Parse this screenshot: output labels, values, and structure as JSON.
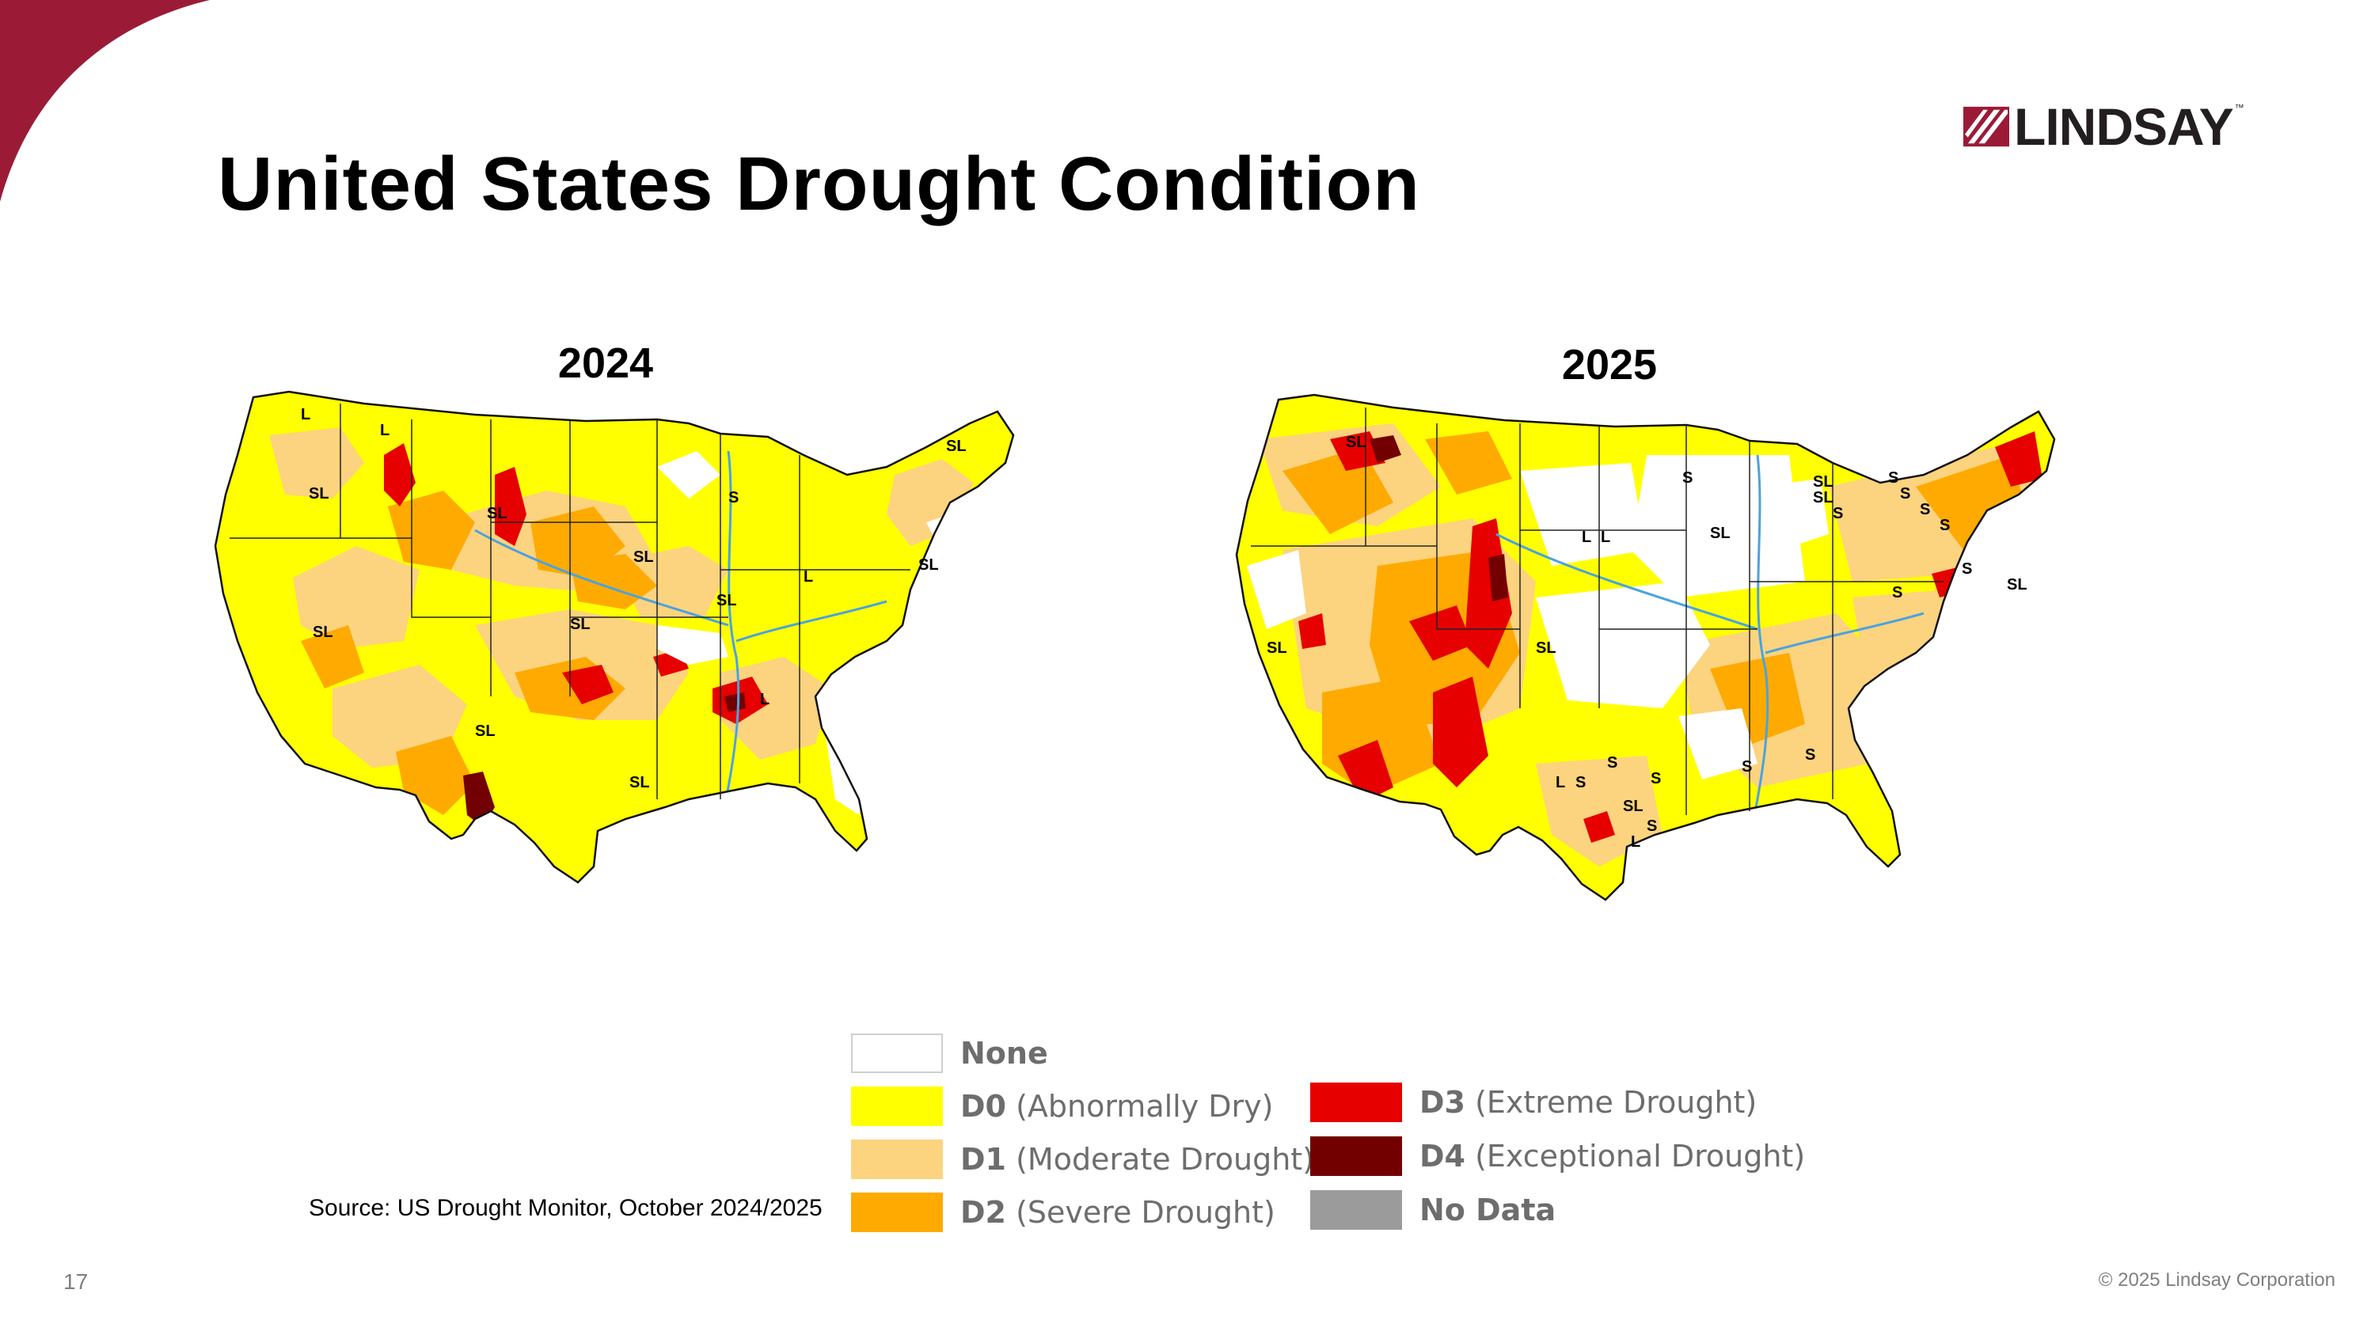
{
  "header": {
    "title": "United States Drought Condition",
    "logo_text": "LINDSAY",
    "logo_tm": "™"
  },
  "maps": [
    {
      "year": "2024",
      "labels": [
        "L",
        "L",
        "SL",
        "SL",
        "SL",
        "SL",
        "SL",
        "S",
        "L",
        "SL",
        "SL",
        "SL",
        "SL",
        "L",
        "SL"
      ]
    },
    {
      "year": "2025",
      "labels": [
        "SL",
        "S",
        "L",
        "L",
        "SL",
        "SL",
        "SL",
        "S",
        "S",
        "S",
        "S",
        "S",
        "SL",
        "S",
        "S",
        "L",
        "S",
        "SL",
        "S",
        "L",
        "S",
        "S",
        "SL",
        "S",
        "SL",
        "S"
      ]
    }
  ],
  "legend": {
    "items": [
      {
        "code": "None",
        "desc": "",
        "color": "#ffffff"
      },
      {
        "code": "D0",
        "desc": "(Abnormally Dry)",
        "color": "#ffff00"
      },
      {
        "code": "D1",
        "desc": "(Moderate Drought)",
        "color": "#fcd37f"
      },
      {
        "code": "D2",
        "desc": "(Severe Drought)",
        "color": "#ffaa00"
      },
      {
        "code": "D3",
        "desc": "(Extreme Drought)",
        "color": "#e60000"
      },
      {
        "code": "D4",
        "desc": "(Exceptional Drought)",
        "color": "#730000"
      },
      {
        "code": "No Data",
        "desc": "",
        "color": "#9b9b9b"
      }
    ]
  },
  "footer": {
    "source": "Source: US Drought Monitor, October 2024/2025",
    "page_number": "17",
    "copyright": "© 2025 Lindsay Corporation"
  },
  "colors": {
    "brand": "#9b1b37",
    "none": "#ffffff",
    "d0": "#ffff00",
    "d1": "#fcd37f",
    "d2": "#ffaa00",
    "d3": "#e60000",
    "d4": "#730000",
    "no_data": "#9b9b9b"
  }
}
